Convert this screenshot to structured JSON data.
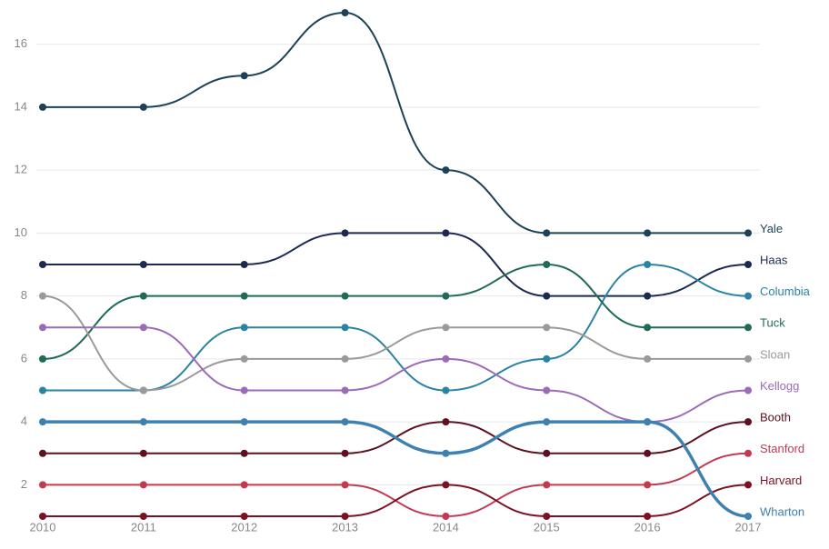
{
  "chart_data": {
    "type": "line",
    "x": [
      2010,
      2011,
      2012,
      2013,
      2014,
      2015,
      2016,
      2017
    ],
    "xlim": [
      2010,
      2017
    ],
    "ylim": [
      1,
      17
    ],
    "yticks": [
      2,
      4,
      6,
      8,
      10,
      12,
      14,
      16
    ],
    "grid": true,
    "series": [
      {
        "name": "Yale",
        "color": "#1d4258",
        "values": [
          14,
          14,
          15,
          17,
          12,
          10,
          10,
          10
        ]
      },
      {
        "name": "Haas",
        "color": "#1c2a52",
        "values": [
          9,
          9,
          9,
          10,
          10,
          8,
          8,
          9
        ]
      },
      {
        "name": "Columbia",
        "color": "#2b83a3",
        "values": [
          5,
          5,
          7,
          7,
          5,
          6,
          9,
          8
        ]
      },
      {
        "name": "Tuck",
        "color": "#1f6b57",
        "values": [
          6,
          8,
          8,
          8,
          8,
          9,
          7,
          7
        ]
      },
      {
        "name": "Sloan",
        "color": "#9a9a9a",
        "values": [
          8,
          5,
          6,
          6,
          7,
          7,
          6,
          6
        ]
      },
      {
        "name": "Kellogg",
        "color": "#9c6bb8",
        "values": [
          7,
          7,
          5,
          5,
          6,
          5,
          4,
          5
        ]
      },
      {
        "name": "Booth",
        "color": "#5c1020",
        "values": [
          3,
          3,
          3,
          3,
          4,
          3,
          3,
          4
        ]
      },
      {
        "name": "Stanford",
        "color": "#c23a52",
        "values": [
          2,
          2,
          2,
          2,
          1,
          2,
          2,
          3
        ]
      },
      {
        "name": "Harvard",
        "color": "#7b1224",
        "values": [
          1,
          1,
          1,
          1,
          2,
          1,
          1,
          2
        ]
      },
      {
        "name": "Wharton",
        "color": "#3f80b2",
        "values": [
          4,
          4,
          4,
          4,
          3,
          4,
          4,
          1
        ]
      }
    ]
  }
}
